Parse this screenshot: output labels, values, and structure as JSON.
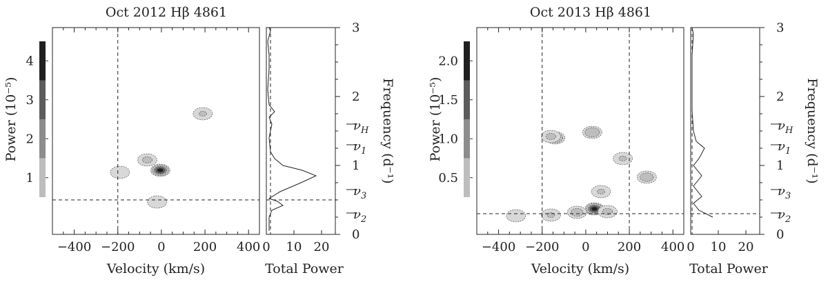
{
  "chart_data": [
    {
      "type": "heatmap",
      "title": "Oct 2012 Hβ 4861",
      "xlabel": "Velocity (km/s)",
      "colorbar_label": "Power (10⁻⁵)",
      "colorbar_ticks": [
        "1",
        "2",
        "3",
        "4"
      ],
      "colorbar_levels": [
        1,
        2,
        3,
        4
      ],
      "colorbar_colors": [
        "#bdbdbd",
        "#8c8c8c",
        "#5c5c5c",
        "#1f1f1f"
      ],
      "xlim": [
        -500,
        450
      ],
      "ylim": [
        0,
        3
      ],
      "x_ticks": [
        "−400",
        "−200",
        "0",
        "200",
        "400"
      ],
      "vlines_velocity": [
        -200
      ],
      "hline_frequency": 0.5,
      "blobs": [
        {
          "x": -5,
          "y": 0.93,
          "peak": 4.8
        },
        {
          "x": -65,
          "y": 1.08,
          "peak": 1.2
        },
        {
          "x": -190,
          "y": 0.9,
          "peak": 1.0
        },
        {
          "x": 190,
          "y": 1.75,
          "peak": 1.1
        },
        {
          "x": -20,
          "y": 0.47,
          "peak": 1.0
        }
      ],
      "side_panel": {
        "xlabel": "Total Power",
        "x_ticks": [
          "0",
          "10",
          "20"
        ],
        "xlim": [
          0,
          25
        ],
        "vline_total_power": 1.5,
        "curve": [
          [
            1,
            0.05
          ],
          [
            1,
            0.25
          ],
          [
            2,
            0.35
          ],
          [
            6,
            0.42
          ],
          [
            4,
            0.48
          ],
          [
            1,
            0.52
          ],
          [
            5,
            0.62
          ],
          [
            12,
            0.74
          ],
          [
            18,
            0.85
          ],
          [
            13,
            0.93
          ],
          [
            6,
            1.0
          ],
          [
            3,
            1.1
          ],
          [
            1.5,
            1.2
          ],
          [
            1,
            1.4
          ],
          [
            2,
            1.6
          ],
          [
            1,
            1.7
          ],
          [
            3,
            1.78
          ],
          [
            1,
            1.88
          ],
          [
            0.5,
            2.1
          ],
          [
            1,
            2.4
          ],
          [
            1,
            2.6
          ],
          [
            0.5,
            2.8
          ],
          [
            1.5,
            2.95
          ],
          [
            1,
            3.0
          ]
        ]
      },
      "frequency_axis": {
        "label": "Frequency (d⁻¹)",
        "ticks": [
          "0",
          "1",
          "2",
          "3"
        ],
        "markers": [
          {
            "label": "νH",
            "sub": "H",
            "value": 1.6
          },
          {
            "label": "ν1",
            "sub": "1",
            "value": 1.3
          },
          {
            "label": "ν3",
            "sub": "3",
            "value": 0.65
          },
          {
            "label": "ν2",
            "sub": "2",
            "value": 0.31
          }
        ]
      }
    },
    {
      "type": "heatmap",
      "title": "Oct 2013 Hβ 4861",
      "xlabel": "Velocity (km/s)",
      "colorbar_label": "Power (10⁻⁵)",
      "colorbar_ticks": [
        "0.5",
        "1.0",
        "1.5",
        "2.0"
      ],
      "colorbar_levels": [
        0.5,
        1.0,
        1.5,
        2.0
      ],
      "colorbar_colors": [
        "#bdbdbd",
        "#8c8c8c",
        "#5c5c5c",
        "#1f1f1f"
      ],
      "xlim": [
        -500,
        450
      ],
      "ylim": [
        0,
        3
      ],
      "x_ticks": [
        "−400",
        "−200",
        "0",
        "200",
        "400"
      ],
      "vlines_velocity": [
        -200,
        200
      ],
      "hline_frequency": 0.3,
      "blobs": [
        {
          "x": -140,
          "y": 1.4,
          "peak": 1.2
        },
        {
          "x": 30,
          "y": 1.48,
          "peak": 1.0
        },
        {
          "x": -160,
          "y": 1.42,
          "peak": 0.6
        },
        {
          "x": 280,
          "y": 0.83,
          "peak": 0.8
        },
        {
          "x": 170,
          "y": 1.1,
          "peak": 0.55
        },
        {
          "x": 40,
          "y": 0.37,
          "peak": 2.4
        },
        {
          "x": -40,
          "y": 0.32,
          "peak": 0.7
        },
        {
          "x": 100,
          "y": 0.33,
          "peak": 0.6
        },
        {
          "x": -160,
          "y": 0.28,
          "peak": 0.55
        },
        {
          "x": 70,
          "y": 0.62,
          "peak": 0.55
        },
        {
          "x": -320,
          "y": 0.27,
          "peak": 0.5
        }
      ],
      "side_panel": {
        "xlabel": "Total Power",
        "x_ticks": [
          "0",
          "10",
          "20"
        ],
        "xlim": [
          0,
          25
        ],
        "vline_total_power": 0.5,
        "curve": [
          [
            8,
            0.25
          ],
          [
            3,
            0.35
          ],
          [
            1,
            0.45
          ],
          [
            4,
            0.55
          ],
          [
            1,
            0.7
          ],
          [
            4,
            0.85
          ],
          [
            1,
            1.0
          ],
          [
            3,
            1.1
          ],
          [
            5,
            1.25
          ],
          [
            2,
            1.35
          ],
          [
            1,
            1.5
          ],
          [
            0.5,
            1.8
          ],
          [
            0.5,
            2.2
          ],
          [
            0.5,
            2.6
          ],
          [
            1,
            2.9
          ],
          [
            0.5,
            3.0
          ]
        ]
      },
      "frequency_axis": {
        "label": "Frequency (d⁻¹)",
        "ticks": [
          "0",
          "1",
          "2",
          "3"
        ],
        "markers": [
          {
            "label": "νH",
            "sub": "H",
            "value": 1.6
          },
          {
            "label": "ν1",
            "sub": "1",
            "value": 1.3
          },
          {
            "label": "ν3",
            "sub": "3",
            "value": 0.65
          },
          {
            "label": "ν2",
            "sub": "2",
            "value": 0.31
          }
        ]
      }
    }
  ]
}
